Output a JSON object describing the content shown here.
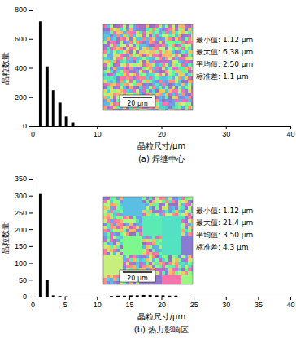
{
  "chart_data": [
    {
      "type": "histogram",
      "title": "(a) 焊缝中心",
      "x_label": "晶粒尺寸/μm",
      "y_label": "晶粒数量",
      "bins": [
        0.75,
        1.75,
        2.75,
        3.75,
        4.75,
        5.75,
        6.75
      ],
      "values": [
        720,
        410,
        245,
        160,
        65,
        25
      ],
      "color": "#000000",
      "xlim": [
        0,
        40
      ],
      "xticks": [
        0,
        10,
        20,
        30,
        40
      ],
      "ylim": [
        0,
        800
      ],
      "yticks": [
        0,
        200,
        400,
        600,
        800
      ],
      "annotations": [
        "最小值: 1.12 μm",
        "最大值: 6.38 μm",
        "平均值: 2.50 μm",
        "标准差: 1.1 μm"
      ],
      "scale_bar": "20 μm"
    },
    {
      "type": "histogram",
      "title": "(b) 热力影响区",
      "x_label": "晶粒尺寸/μm",
      "y_label": "晶粒数量",
      "bins": [
        0.75,
        1.75,
        2.75,
        3.75,
        4.75,
        5.75,
        6.75,
        7.75,
        8.75,
        9.75,
        10.75,
        11.75,
        12.75,
        13.75,
        14.75,
        15.75,
        16.75,
        17.75,
        18.75,
        19.75,
        20.75,
        21.75,
        22.75
      ],
      "values": [
        305,
        50,
        4,
        2,
        1,
        0,
        0,
        0,
        0,
        0,
        0,
        2,
        3,
        3,
        4,
        4,
        5,
        5,
        4,
        4,
        3,
        3
      ],
      "color": "#000000",
      "xlim": [
        0,
        40
      ],
      "xticks": [
        0,
        5,
        10,
        15,
        20,
        25,
        30,
        35,
        40
      ],
      "ylim": [
        0,
        350
      ],
      "yticks": [
        0,
        50,
        100,
        150,
        200,
        250,
        300,
        350
      ],
      "annotations": [
        "最小值: 1.12 μm",
        "最大值: 21.4 μm",
        "平均值: 3.50 μm",
        "标准差: 4.3 μm"
      ],
      "scale_bar": "20 μm"
    }
  ]
}
